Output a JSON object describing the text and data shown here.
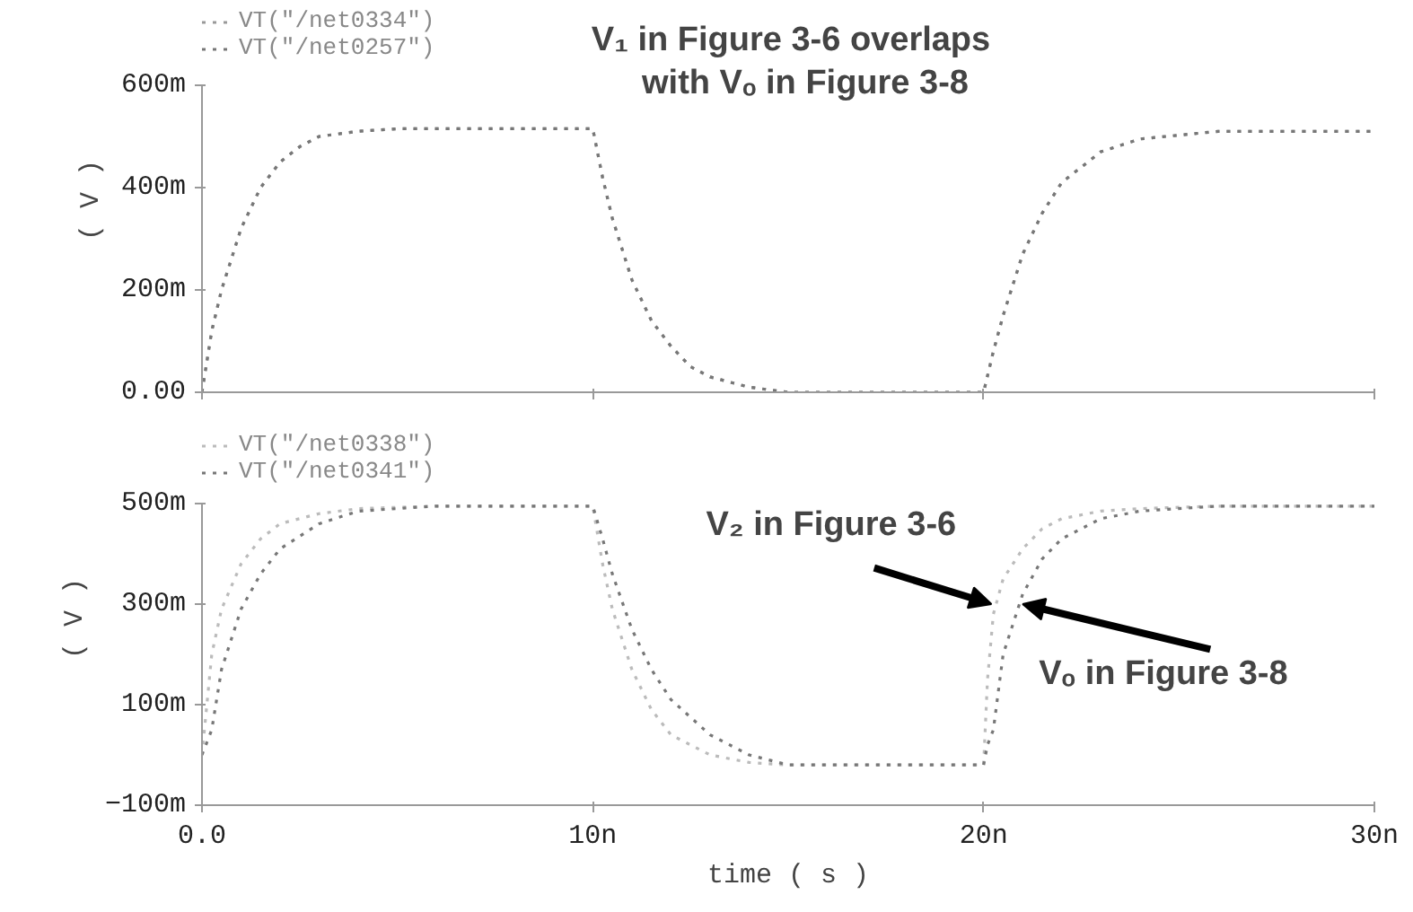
{
  "chart_data": [
    {
      "type": "line",
      "ylabel": "( V )",
      "annotations": [
        "V₁ in Figure 3-6 overlaps\nwith Vₒ in Figure 3-8"
      ],
      "x": [
        0,
        0.25,
        0.5,
        1,
        1.5,
        2,
        2.5,
        3,
        4,
        5,
        7,
        10,
        10.25,
        10.5,
        11,
        11.5,
        12,
        12.5,
        13,
        14,
        15,
        17,
        20,
        20.25,
        20.5,
        21,
        21.5,
        22,
        23,
        24,
        26,
        30
      ],
      "series": [
        {
          "name": "VT(\"/net0334\")",
          "color": "#999999",
          "values": [
            0,
            120,
            200,
            320,
            400,
            450,
            480,
            500,
            510,
            515,
            515,
            515,
            420,
            340,
            220,
            140,
            90,
            50,
            30,
            10,
            0,
            0,
            0,
            80,
            150,
            270,
            350,
            410,
            470,
            495,
            510,
            510
          ]
        },
        {
          "name": "VT(\"/net0257\")",
          "color": "#777777",
          "values": [
            0,
            120,
            200,
            320,
            400,
            450,
            480,
            500,
            510,
            515,
            515,
            515,
            420,
            340,
            220,
            140,
            90,
            50,
            30,
            10,
            0,
            0,
            0,
            80,
            150,
            270,
            350,
            410,
            470,
            495,
            510,
            510
          ]
        }
      ],
      "xlim": [
        0,
        30
      ],
      "ylim": [
        0,
        600
      ],
      "xticks": [
        {
          "value": 0,
          "label": null
        },
        {
          "value": 10,
          "label": null
        },
        {
          "value": 20,
          "label": null
        },
        {
          "value": 30,
          "label": null
        }
      ],
      "yticks": [
        {
          "value": 0,
          "label": "0.00"
        },
        {
          "value": 200,
          "label": "200m"
        },
        {
          "value": 400,
          "label": "400m"
        },
        {
          "value": 600,
          "label": "600m"
        }
      ],
      "tick_labels": "y",
      "legend": "top left",
      "line_style": "dotted",
      "grid": false
    },
    {
      "type": "line",
      "xlabel": "time ( s )",
      "ylabel": "( V )",
      "annotations": [
        {
          "text": "V₂ in Figure 3-6",
          "x": 20.2,
          "y": 300
        },
        {
          "text": "Vₒ in Figure 3-8",
          "x": 21,
          "y": 300
        }
      ],
      "x": [
        0,
        0.25,
        0.5,
        1,
        1.5,
        2,
        3,
        4,
        6,
        10,
        10.25,
        10.5,
        11,
        11.5,
        12,
        13,
        14,
        15,
        20,
        20.1,
        20.25,
        20.5,
        21,
        21.5,
        22,
        23,
        24,
        26,
        30
      ],
      "series": [
        {
          "name": "VT(\"/net0338\")",
          "color": "#bbbbbb",
          "values": [
            0,
            200,
            290,
            380,
            430,
            460,
            480,
            490,
            495,
            495,
            380,
            290,
            170,
            90,
            40,
            0,
            -15,
            -20,
            -20,
            150,
            280,
            350,
            410,
            450,
            470,
            485,
            490,
            495,
            495
          ]
        },
        {
          "name": "VT(\"/net0341\")",
          "color": "#777777",
          "values": [
            0,
            50,
            170,
            290,
            360,
            410,
            460,
            485,
            495,
            495,
            430,
            360,
            250,
            170,
            110,
            40,
            0,
            -20,
            -20,
            20,
            50,
            200,
            320,
            390,
            430,
            470,
            485,
            495,
            495
          ]
        }
      ],
      "xlim": [
        0,
        30
      ],
      "ylim": [
        -100,
        500
      ],
      "xticks": [
        {
          "value": 0,
          "label": "0.0"
        },
        {
          "value": 10,
          "label": "10n"
        },
        {
          "value": 20,
          "label": "20n"
        },
        {
          "value": 30,
          "label": "30n"
        }
      ],
      "yticks": [
        {
          "value": -100,
          "label": "−100m"
        },
        {
          "value": 100,
          "label": "100m"
        },
        {
          "value": 300,
          "label": "300m"
        },
        {
          "value": 500,
          "label": "500m"
        }
      ],
      "legend": "top left",
      "line_style": "dotted",
      "grid": false
    }
  ]
}
